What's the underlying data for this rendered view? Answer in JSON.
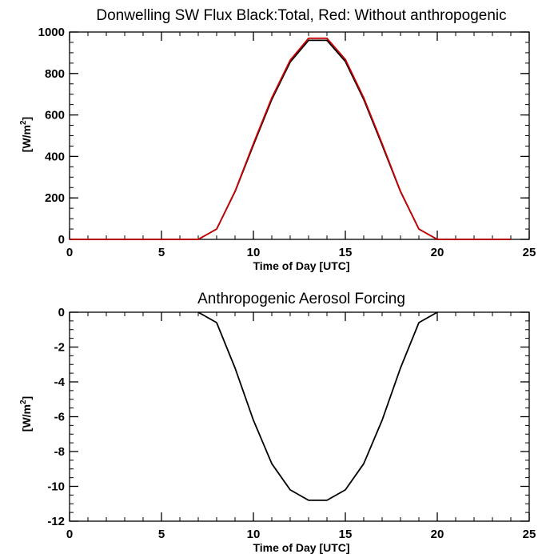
{
  "chart_data": [
    {
      "type": "line",
      "title": "Donwelling SW Flux Black:Total, Red: Without anthropogenic",
      "xlabel": "Time of Day [UTC]",
      "ylabel_base": "[W/m",
      "ylabel_sup": "2",
      "ylabel_end": "]",
      "xlim": [
        0,
        25
      ],
      "ylim": [
        0,
        1000
      ],
      "xticks": [
        0,
        5,
        10,
        15,
        20,
        25
      ],
      "yticks": [
        0,
        200,
        400,
        600,
        800,
        1000
      ],
      "x_minor": 1,
      "y_minor": 50,
      "series": [
        {
          "color": "#000000",
          "x": [
            0,
            1,
            2,
            3,
            4,
            5,
            6,
            7,
            8,
            9,
            10,
            11,
            12,
            13,
            14,
            15,
            16,
            17,
            18,
            19,
            20,
            21,
            22,
            23,
            24
          ],
          "y": [
            0,
            0,
            0,
            0,
            0,
            0,
            0,
            0,
            50,
            230,
            455,
            675,
            855,
            960,
            960,
            858,
            675,
            455,
            230,
            50,
            0,
            0,
            0,
            0,
            0
          ]
        },
        {
          "color": "#cc0000",
          "x": [
            0,
            1,
            2,
            3,
            4,
            5,
            6,
            7,
            8,
            9,
            10,
            11,
            12,
            13,
            14,
            15,
            16,
            17,
            18,
            19,
            20,
            21,
            22,
            23,
            24
          ],
          "y": [
            0,
            0,
            0,
            0,
            0,
            0,
            0,
            0,
            50,
            232,
            462,
            683,
            864,
            970,
            970,
            868,
            683,
            462,
            232,
            50,
            0,
            0,
            0,
            0,
            0
          ]
        }
      ]
    },
    {
      "type": "line",
      "title": "Anthropogenic Aerosol Forcing",
      "xlabel": "Time of Day [UTC]",
      "ylabel_base": "[W/m",
      "ylabel_sup": "2",
      "ylabel_end": "]",
      "xlim": [
        0,
        25
      ],
      "ylim": [
        -12,
        0
      ],
      "xticks": [
        0,
        5,
        10,
        15,
        20,
        25
      ],
      "yticks": [
        -12,
        -10,
        -8,
        -6,
        -4,
        -2,
        0
      ],
      "x_minor": 1,
      "y_minor": 0.5,
      "series": [
        {
          "color": "#000000",
          "x": [
            7,
            8,
            9,
            10,
            11,
            12,
            13,
            14,
            15,
            16,
            17,
            18,
            19,
            20
          ],
          "y": [
            0,
            -0.6,
            -3.2,
            -6.2,
            -8.7,
            -10.2,
            -10.8,
            -10.8,
            -10.2,
            -8.7,
            -6.2,
            -3.2,
            -0.6,
            0
          ]
        }
      ]
    }
  ]
}
